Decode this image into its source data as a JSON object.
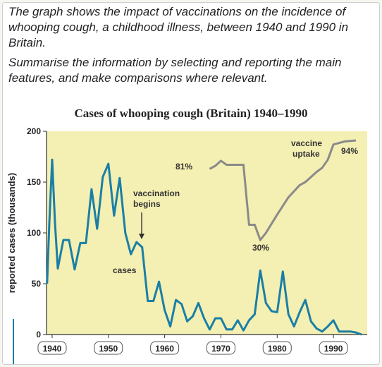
{
  "prompt": {
    "line1": "The graph shows the impact of vaccinations on the incidence of whooping cough, a childhood illness, between 1940 and 1990 in Britain.",
    "line2": "Summarise the information by selecting and reporting the main features, and make comparisons where relevant."
  },
  "chart_data": {
    "type": "line",
    "title": "Cases of whooping cough (Britain) 1940–1990",
    "xlabel": "",
    "ylabel": "reported cases (thousands)",
    "xlim": [
      1939,
      1996
    ],
    "ylim": [
      0,
      200
    ],
    "x_ticks": [
      "1940",
      "1950",
      "1960",
      "1970",
      "1980",
      "1990"
    ],
    "x_tick_values": [
      1940,
      1950,
      1960,
      1970,
      1980,
      1990
    ],
    "y_ticks": [
      "0",
      "50",
      "100",
      "150",
      "200"
    ],
    "y_tick_values": [
      0,
      50,
      100,
      150,
      200
    ],
    "grid": false,
    "series": [
      {
        "name": "cases",
        "color": "#1a7fa6",
        "points": [
          [
            1939.1,
            50
          ],
          [
            1939.5,
            110
          ],
          [
            1940,
            172
          ],
          [
            1940.5,
            110
          ],
          [
            1941,
            65
          ],
          [
            1942,
            93
          ],
          [
            1943,
            93
          ],
          [
            1944,
            64
          ],
          [
            1945,
            90
          ],
          [
            1946,
            90
          ],
          [
            1947,
            143
          ],
          [
            1948,
            104
          ],
          [
            1949,
            155
          ],
          [
            1950,
            168
          ],
          [
            1951,
            117
          ],
          [
            1952,
            154
          ],
          [
            1953,
            100
          ],
          [
            1954,
            79
          ],
          [
            1955,
            91
          ],
          [
            1956,
            86
          ],
          [
            1957,
            33
          ],
          [
            1958,
            33
          ],
          [
            1959,
            52
          ],
          [
            1960,
            24
          ],
          [
            1961,
            8
          ],
          [
            1962,
            34
          ],
          [
            1963,
            30
          ],
          [
            1964,
            13
          ],
          [
            1965,
            18
          ],
          [
            1966,
            31
          ],
          [
            1967,
            16
          ],
          [
            1968,
            5
          ],
          [
            1969,
            16
          ],
          [
            1970,
            16
          ],
          [
            1971,
            5
          ],
          [
            1972,
            5
          ],
          [
            1973,
            14
          ],
          [
            1974,
            4
          ],
          [
            1975,
            14
          ],
          [
            1976,
            20
          ],
          [
            1977,
            63
          ],
          [
            1978,
            31
          ],
          [
            1979,
            23
          ],
          [
            1980,
            22
          ],
          [
            1981,
            62
          ],
          [
            1982,
            20
          ],
          [
            1983,
            8
          ],
          [
            1984,
            22
          ],
          [
            1985,
            34
          ],
          [
            1986,
            13
          ],
          [
            1987,
            6
          ],
          [
            1988,
            3
          ],
          [
            1989,
            8
          ],
          [
            1990,
            14
          ],
          [
            1991,
            3
          ],
          [
            1992,
            3
          ],
          [
            1993,
            3
          ],
          [
            1994,
            2
          ],
          [
            1995,
            0
          ]
        ]
      },
      {
        "name": "vaccine uptake",
        "color": "#8a8a8a",
        "points": [
          [
            1968,
            163
          ],
          [
            1969,
            166
          ],
          [
            1970,
            171
          ],
          [
            1971,
            167
          ],
          [
            1972,
            167
          ],
          [
            1973,
            167
          ],
          [
            1974,
            167
          ],
          [
            1975,
            108
          ],
          [
            1976,
            108
          ],
          [
            1977,
            93
          ],
          [
            1978,
            100
          ],
          [
            1980,
            118
          ],
          [
            1982,
            135
          ],
          [
            1984,
            147
          ],
          [
            1985,
            150
          ],
          [
            1987,
            160
          ],
          [
            1988,
            164
          ],
          [
            1989,
            172
          ],
          [
            1990,
            187
          ],
          [
            1992,
            190
          ],
          [
            1994,
            191
          ]
        ]
      }
    ],
    "annotations": {
      "start_uptake": "81%",
      "low_uptake": "30%",
      "high_uptake": "94%",
      "vaccine_uptake_line1": "vaccine",
      "vaccine_uptake_line2": "uptake",
      "vaccination_line1": "vaccination",
      "vaccination_line2": "begins",
      "cases_label": "cases"
    }
  }
}
